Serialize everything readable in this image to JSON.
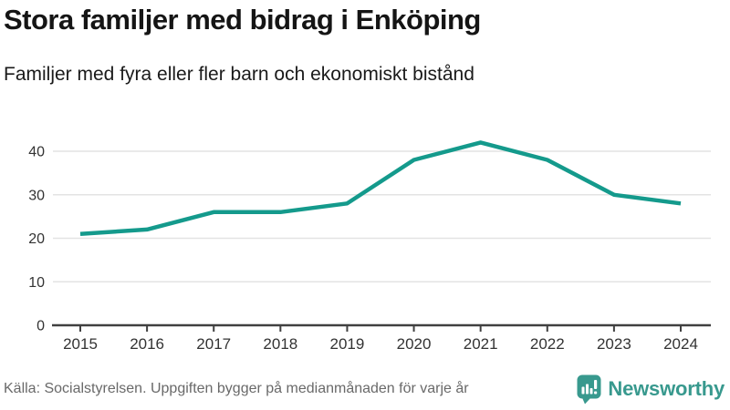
{
  "chart_data": {
    "type": "line",
    "title": "Stora familjer med bidrag i Enköping",
    "subtitle": "Familjer med fyra eller fler barn och ekonomiskt bistånd",
    "categories": [
      "2015",
      "2016",
      "2017",
      "2018",
      "2019",
      "2020",
      "2021",
      "2022",
      "2023",
      "2024"
    ],
    "values": [
      21,
      22,
      26,
      26,
      28,
      38,
      42,
      38,
      30,
      28
    ],
    "xlabel": "",
    "ylabel": "",
    "ylim": [
      0,
      45
    ],
    "yticks": [
      0,
      10,
      20,
      30,
      40
    ],
    "grid": true,
    "legend": false,
    "line_color": "#149a8c",
    "gridline_color": "#e3e3e3",
    "axis_color": "#404040",
    "tick_label_color": "#333333"
  },
  "footer": {
    "source": "Källa: Socialstyrelsen. Uppgiften bygger på medianmånaden för varje år",
    "brand_name": "Newsworthy",
    "brand_color": "#38998e",
    "logo_icon": "bar-chart-speech-bubble-icon"
  }
}
